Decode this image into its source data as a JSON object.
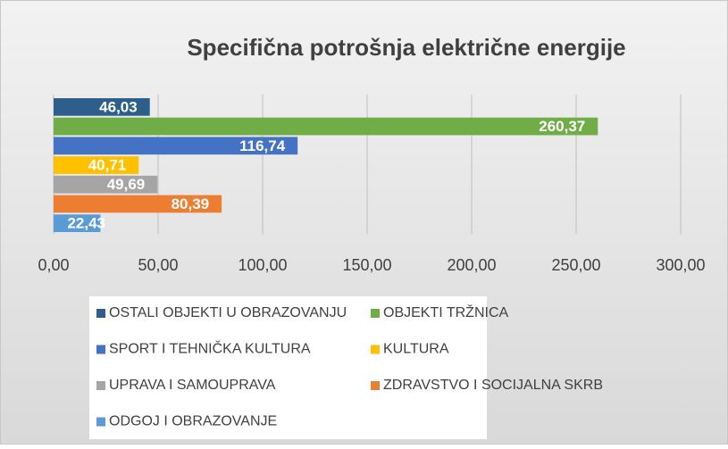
{
  "chart_data": {
    "type": "bar",
    "orientation": "horizontal",
    "title": "Specifična potrošnja električne energije",
    "series": [
      {
        "name": "OSTALI OBJEKTI U OBRAZOVANJU",
        "color": "#2e5f8a",
        "values": [
          46.03
        ],
        "value_labels": [
          "46,03"
        ]
      },
      {
        "name": "OBJEKTI TRŽNICA",
        "color": "#70ad47",
        "values": [
          260.37
        ],
        "value_labels": [
          "260,37"
        ]
      },
      {
        "name": "SPORT I TEHNIČKA KULTURA",
        "color": "#4472c4",
        "values": [
          116.74
        ],
        "value_labels": [
          "116,74"
        ]
      },
      {
        "name": "KULTURA",
        "color": "#ffc000",
        "values": [
          40.71
        ],
        "value_labels": [
          "40,71"
        ]
      },
      {
        "name": "UPRAVA I SAMOUPRAVA",
        "color": "#a5a5a5",
        "values": [
          49.69
        ],
        "value_labels": [
          "49,69"
        ]
      },
      {
        "name": "ZDRAVSTVO I SOCIJALNA SKRB",
        "color": "#ed7d31",
        "values": [
          80.39
        ],
        "value_labels": [
          "80,39"
        ]
      },
      {
        "name": "ODGOJ I OBRAZOVANJE",
        "color": "#5b9bd5",
        "values": [
          22.43
        ],
        "value_labels": [
          "22,43"
        ]
      }
    ],
    "xlim": [
      0,
      300
    ],
    "xticks": [
      {
        "value": 0,
        "label": "0,00"
      },
      {
        "value": 50,
        "label": "50,00"
      },
      {
        "value": 100,
        "label": "100,00"
      },
      {
        "value": 150,
        "label": "150,00"
      },
      {
        "value": 200,
        "label": "200,00"
      },
      {
        "value": 250,
        "label": "250,00"
      },
      {
        "value": 300,
        "label": "300,00"
      }
    ],
    "grid": true,
    "legend": "bottom"
  }
}
